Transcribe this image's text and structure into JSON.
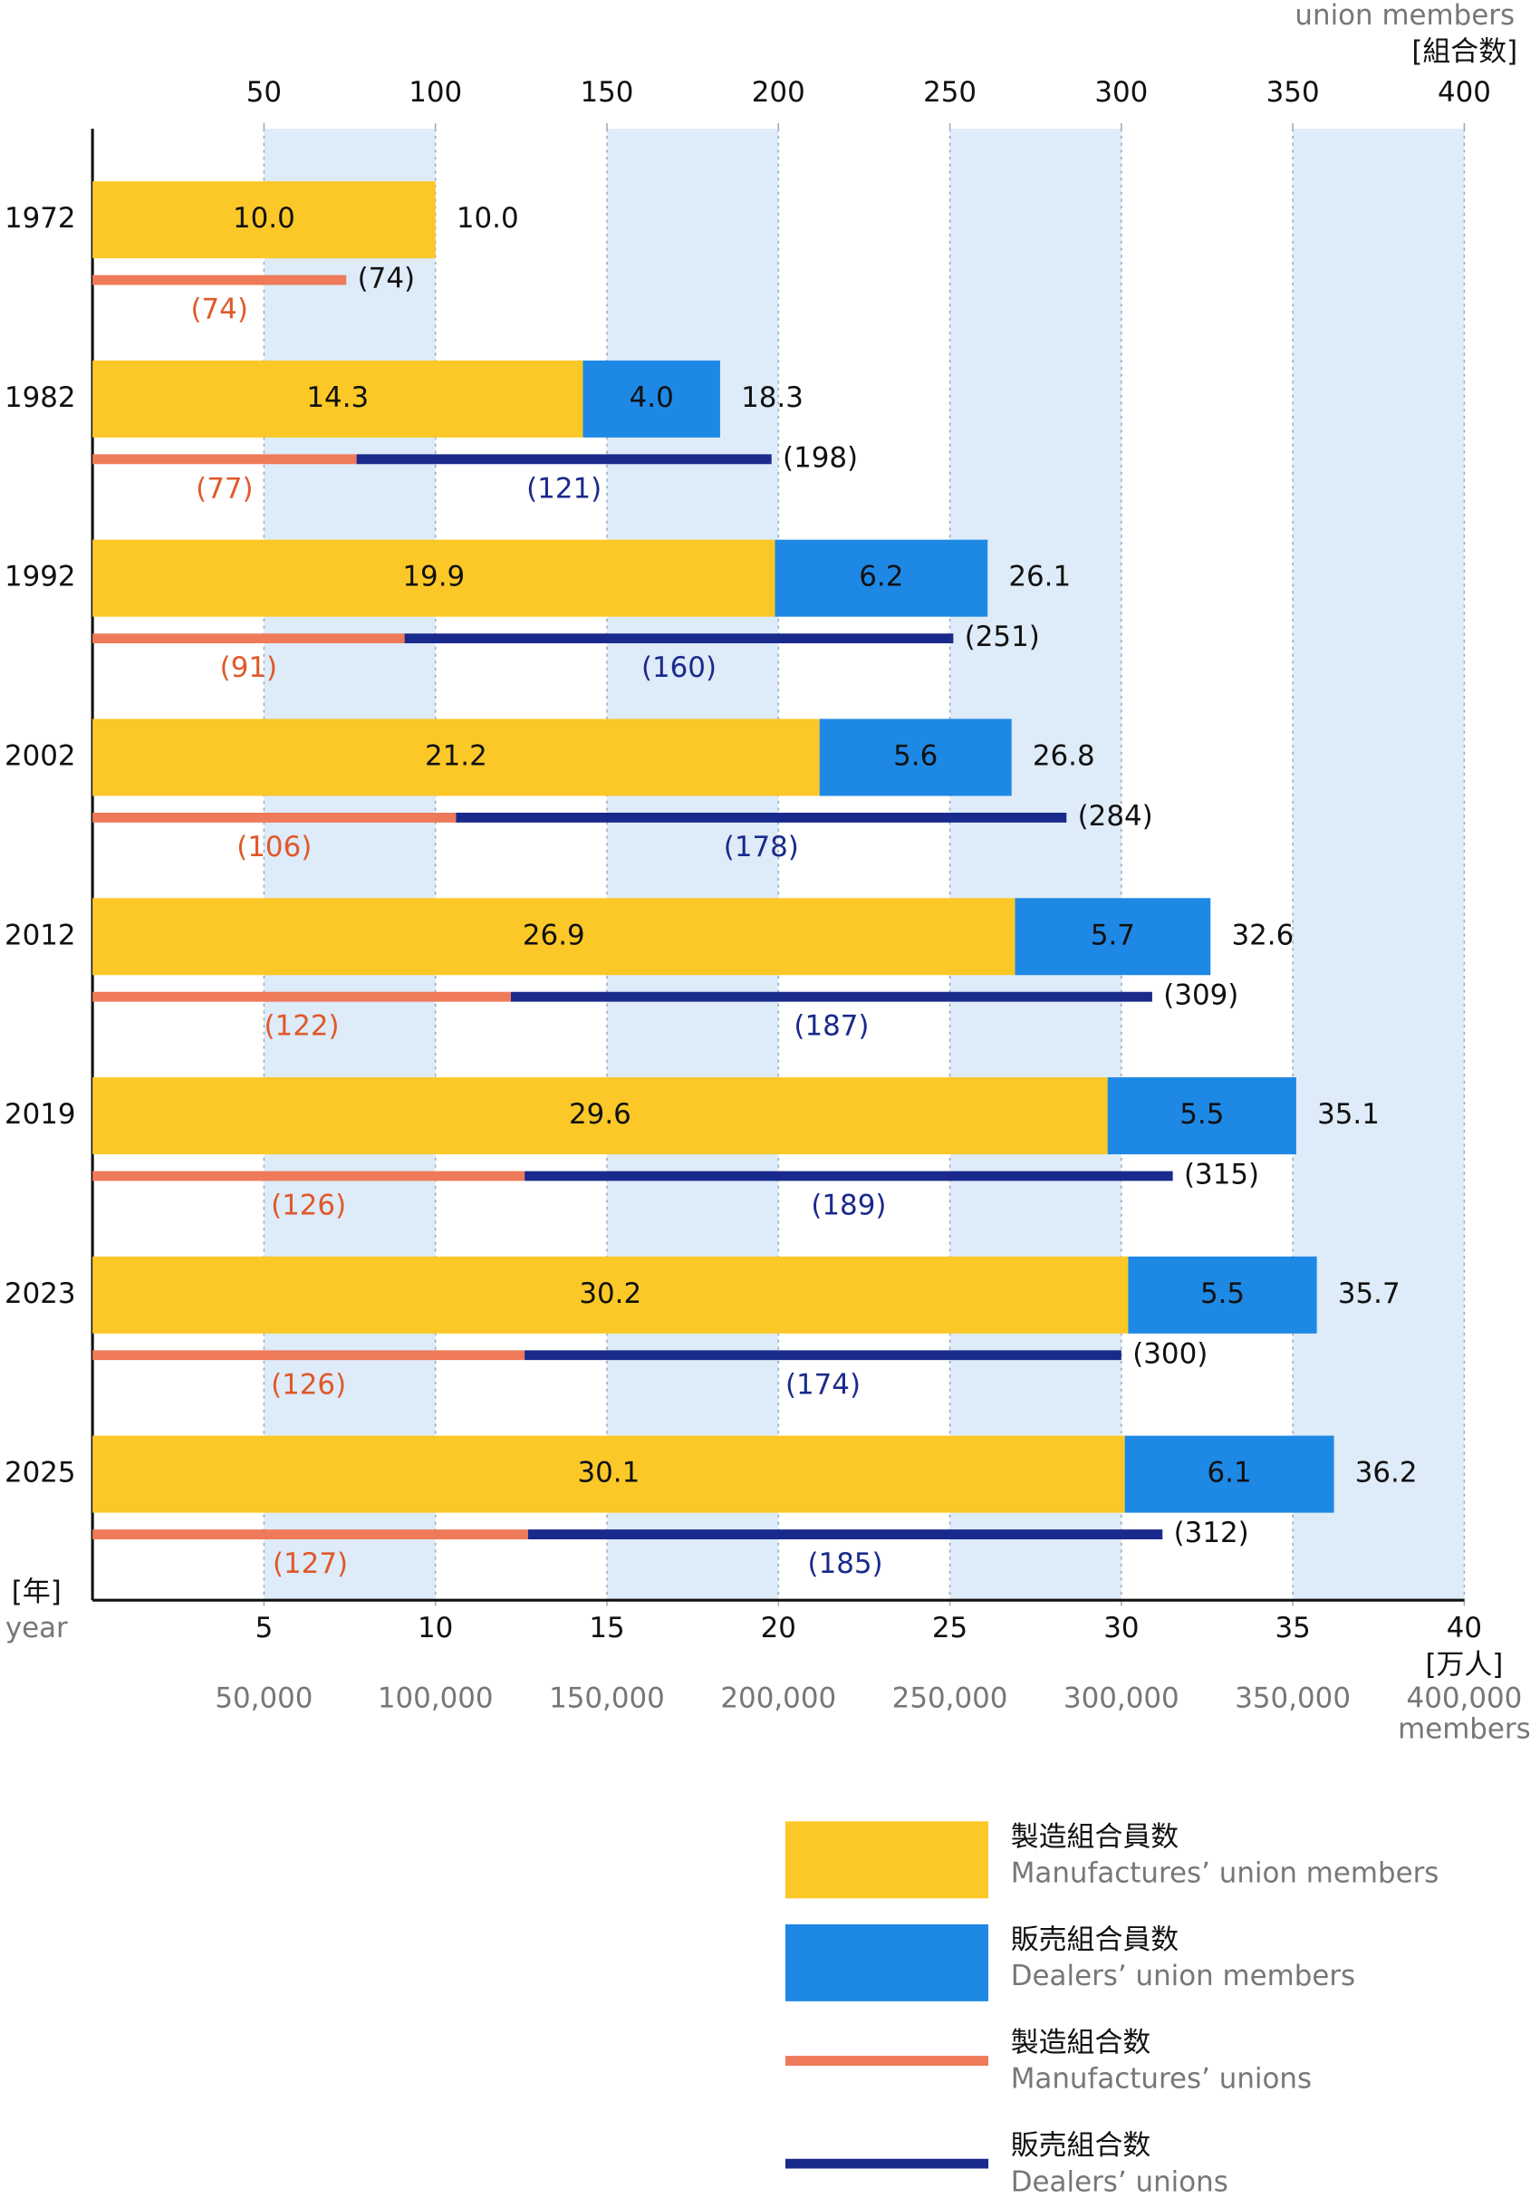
{
  "chart_data": {
    "type": "bar",
    "orientation": "horizontal",
    "stacked": true,
    "categories": [
      "1972",
      "1982",
      "1992",
      "2002",
      "2012",
      "2019",
      "2023",
      "2025"
    ],
    "series": [
      {
        "name": "製造組合員数",
        "name_en": "Manufactures’ union members",
        "color": "#fbc828",
        "mark": "bar",
        "axis": "x",
        "values": [
          10.0,
          14.3,
          19.9,
          21.2,
          26.9,
          29.6,
          30.2,
          30.1
        ],
        "value_labels": [
          "10.0",
          "14.3",
          "19.9",
          "21.2",
          "26.9",
          "29.6",
          "30.2",
          "30.1"
        ],
        "label_color": "#111111"
      },
      {
        "name": "販売組合員数",
        "name_en": "Dealers’ union members",
        "color": "#1e88e5",
        "mark": "bar",
        "axis": "x",
        "values": [
          null,
          4.0,
          6.2,
          5.6,
          5.7,
          5.5,
          5.5,
          6.1
        ],
        "value_labels": [
          null,
          "4.0",
          "6.2",
          "5.6",
          "5.7",
          "5.5",
          "5.5",
          "6.1"
        ],
        "label_color": "#111111"
      },
      {
        "name": "製造組合数",
        "name_en": "Manufactures’ unions",
        "color": "#ee7a5a",
        "mark": "line",
        "axis": "x2",
        "values": [
          74,
          77,
          91,
          106,
          122,
          126,
          126,
          127
        ],
        "value_labels": [
          "(74)",
          "(77)",
          "(91)",
          "(106)",
          "(122)",
          "(126)",
          "(126)",
          "(127)"
        ],
        "label_color": "#e0582a"
      },
      {
        "name": "販売組合数",
        "name_en": "Dealers’ unions",
        "color": "#1a2a8c",
        "mark": "line",
        "axis": "x2",
        "values": [
          null,
          121,
          160,
          178,
          187,
          189,
          174,
          185
        ],
        "value_labels": [
          null,
          "(121)",
          "(160)",
          "(178)",
          "(187)",
          "(189)",
          "(174)",
          "(185)"
        ],
        "label_color": "#1a2a8c"
      }
    ],
    "member_total_labels": [
      "10.0",
      "18.3",
      "26.1",
      "26.8",
      "32.6",
      "35.1",
      "35.7",
      "36.2"
    ],
    "union_total_labels": [
      "(74)",
      "(198)",
      "(251)",
      "(284)",
      "(309)",
      "(315)",
      "(300)",
      "(312)"
    ],
    "xlim": [
      0,
      40
    ],
    "xticks": [
      5,
      10,
      15,
      20,
      25,
      30,
      35,
      40
    ],
    "xlabel": "[万人]",
    "x2lim": [
      0,
      400
    ],
    "x2ticks": [
      50,
      100,
      150,
      200,
      250,
      300,
      350,
      400
    ],
    "x2label": "[組合数]",
    "x2label_en": "union members",
    "x3lim": [
      0,
      400000
    ],
    "x3ticks": [
      {
        "value": 50000,
        "label": "50,000"
      },
      {
        "value": 100000,
        "label": "100,000"
      },
      {
        "value": 150000,
        "label": "150,000"
      },
      {
        "value": 200000,
        "label": "200,000"
      },
      {
        "value": 250000,
        "label": "250,000"
      },
      {
        "value": 300000,
        "label": "300,000"
      },
      {
        "value": 350000,
        "label": "350,000"
      },
      {
        "value": 400000,
        "label": "400,000"
      }
    ],
    "x3label": "members",
    "ylabel": "[年]",
    "ylabel_en": "year",
    "grid": true,
    "band_color": "#deebf8"
  }
}
